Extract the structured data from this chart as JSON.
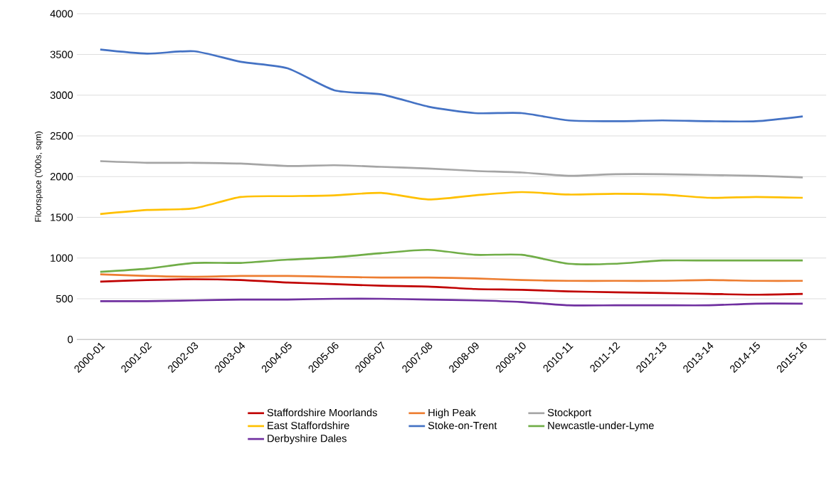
{
  "chart_data": {
    "type": "line",
    "ylabel": "Floorspace ('000s, sqm)",
    "categories": [
      "2000-01",
      "2001-02",
      "2002-03",
      "2003-04",
      "2004-05",
      "2005-06",
      "2006-07",
      "2007-08",
      "2008-09",
      "2009-10",
      "2010-11",
      "2011-12",
      "2012-13",
      "2013-14",
      "2014-15",
      "2015-16"
    ],
    "ylim": [
      0,
      4000
    ],
    "yticks": [
      0,
      500,
      1000,
      1500,
      2000,
      2500,
      3000,
      3500,
      4000
    ],
    "grid": "y",
    "legend": "bottom",
    "marker": "none",
    "line_style": "solid",
    "series": [
      {
        "name": "Staffordshire Moorlands",
        "color": "#c00000",
        "values": [
          710,
          730,
          740,
          730,
          700,
          680,
          660,
          650,
          620,
          610,
          590,
          580,
          570,
          560,
          550,
          560
        ]
      },
      {
        "name": "High Peak",
        "color": "#ed7d31",
        "values": [
          800,
          780,
          770,
          780,
          780,
          770,
          760,
          760,
          750,
          730,
          720,
          720,
          720,
          730,
          720,
          720
        ]
      },
      {
        "name": "Stockport",
        "color": "#a5a5a5",
        "values": [
          2190,
          2170,
          2170,
          2160,
          2130,
          2140,
          2120,
          2100,
          2070,
          2050,
          2010,
          2030,
          2030,
          2020,
          2010,
          1990
        ]
      },
      {
        "name": "East Staffordshire",
        "color": "#ffc000",
        "values": [
          1540,
          1590,
          1610,
          1750,
          1760,
          1770,
          1800,
          1720,
          1770,
          1810,
          1780,
          1790,
          1780,
          1740,
          1750,
          1740
        ]
      },
      {
        "name": "Stoke-on-Trent",
        "color": "#4472c4",
        "values": [
          3560,
          3510,
          3540,
          3410,
          3330,
          3060,
          3010,
          2860,
          2780,
          2780,
          2690,
          2680,
          2690,
          2680,
          2680,
          2740
        ]
      },
      {
        "name": "Newcastle-under-Lyme",
        "color": "#70ad47",
        "values": [
          830,
          870,
          940,
          940,
          980,
          1010,
          1060,
          1100,
          1040,
          1040,
          930,
          930,
          970,
          970,
          970,
          970
        ]
      },
      {
        "name": "Derbyshire Dales",
        "color": "#7030a0",
        "values": [
          470,
          470,
          480,
          490,
          490,
          500,
          500,
          490,
          480,
          460,
          420,
          420,
          420,
          420,
          440,
          440
        ]
      }
    ]
  }
}
